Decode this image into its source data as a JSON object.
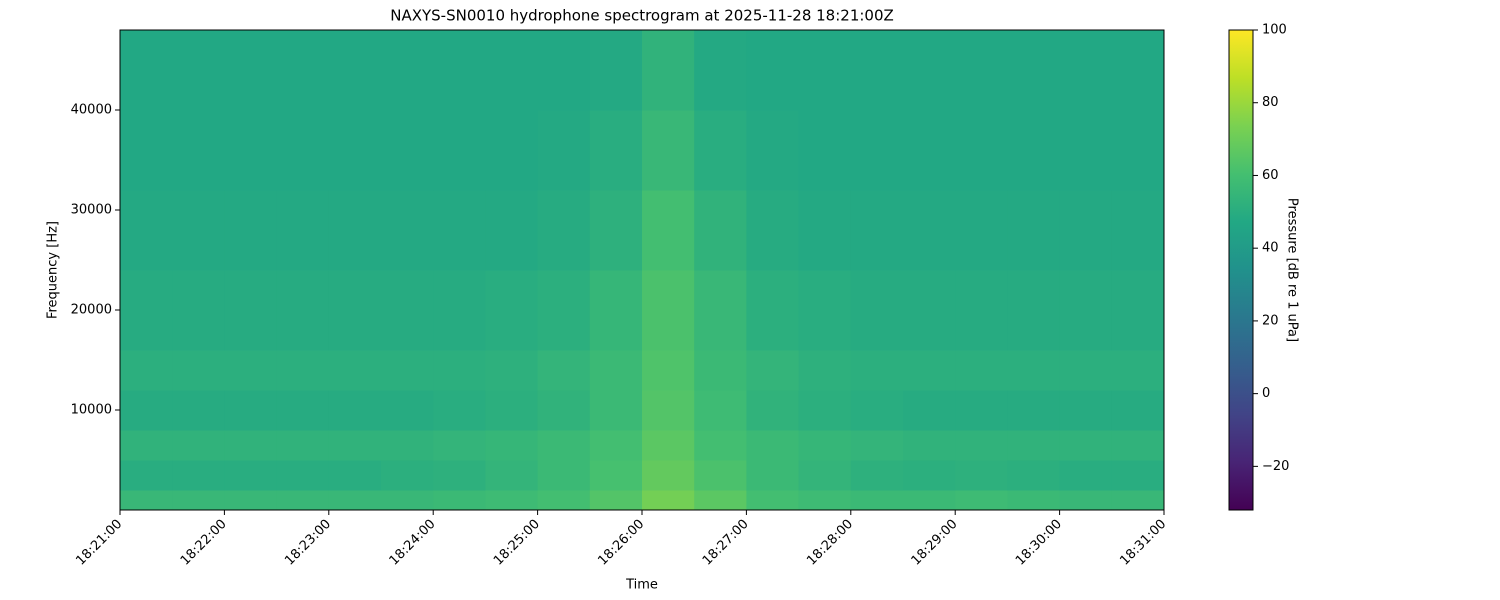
{
  "chart_data": {
    "type": "spectrogram",
    "title": "NAXYS-SN0010 hydrophone spectrogram at 2025-11-28 18:21:00Z",
    "x_label": "Time",
    "y_label": "Frequency [Hz]",
    "colorbar_label": "Pressure [dB re 1 uPa]",
    "colormap": "viridis",
    "x": [
      "18:21:00",
      "18:21:30",
      "18:22:00",
      "18:22:30",
      "18:23:00",
      "18:23:30",
      "18:24:00",
      "18:24:30",
      "18:25:00",
      "18:25:30",
      "18:26:00",
      "18:26:30",
      "18:27:00",
      "18:27:30",
      "18:28:00",
      "18:28:30",
      "18:29:00",
      "18:29:30",
      "18:30:00",
      "18:30:30"
    ],
    "xlim": [
      "18:21:00",
      "18:31:00"
    ],
    "xticks": [
      "18:21:00",
      "18:22:00",
      "18:23:00",
      "18:24:00",
      "18:25:00",
      "18:26:00",
      "18:27:00",
      "18:28:00",
      "18:29:00",
      "18:30:00",
      "18:31:00"
    ],
    "bins": [
      0,
      2000,
      5000,
      8000,
      12000,
      16000,
      24000,
      32000,
      40000,
      48000
    ],
    "ylim": [
      0,
      48000
    ],
    "yticks": [
      10000,
      20000,
      30000,
      40000
    ],
    "z": [
      [
        56,
        56,
        56,
        56,
        56,
        56,
        57,
        58,
        60,
        64,
        72,
        66,
        60,
        58,
        57,
        57,
        58,
        57,
        56,
        56
      ],
      [
        50,
        50,
        50,
        50,
        50,
        51,
        52,
        54,
        57,
        61,
        68,
        62,
        57,
        54,
        52,
        51,
        52,
        51,
        50,
        50
      ],
      [
        53,
        53,
        53,
        53,
        53,
        53,
        54,
        55,
        57,
        60,
        66,
        60,
        57,
        55,
        54,
        53,
        53,
        53,
        53,
        53
      ],
      [
        49,
        49,
        49,
        49,
        49,
        49,
        50,
        51,
        53,
        57,
        64,
        58,
        53,
        51,
        50,
        49,
        49,
        49,
        49,
        49
      ],
      [
        51,
        51,
        51,
        51,
        51,
        51,
        51,
        52,
        54,
        57,
        63,
        57,
        54,
        52,
        51,
        51,
        51,
        51,
        51,
        51
      ],
      [
        49,
        49,
        49,
        49,
        49,
        49,
        49,
        50,
        51,
        55,
        62,
        56,
        51,
        50,
        49,
        49,
        49,
        49,
        49,
        49
      ],
      [
        48,
        48,
        48,
        48,
        48,
        48,
        48,
        48,
        49,
        52,
        60,
        53,
        49,
        48,
        48,
        48,
        48,
        48,
        48,
        48
      ],
      [
        47,
        47,
        47,
        47,
        47,
        47,
        47,
        47,
        48,
        50,
        56,
        50,
        48,
        47,
        47,
        47,
        47,
        47,
        47,
        47
      ],
      [
        47,
        47,
        47,
        47,
        47,
        47,
        47,
        47,
        47,
        48,
        53,
        48,
        47,
        47,
        47,
        47,
        47,
        47,
        47,
        47
      ]
    ],
    "clim": [
      -32,
      100
    ],
    "cticks": [
      {
        "value": -20,
        "label": "−20"
      },
      0,
      20,
      40,
      60,
      80,
      100
    ]
  }
}
